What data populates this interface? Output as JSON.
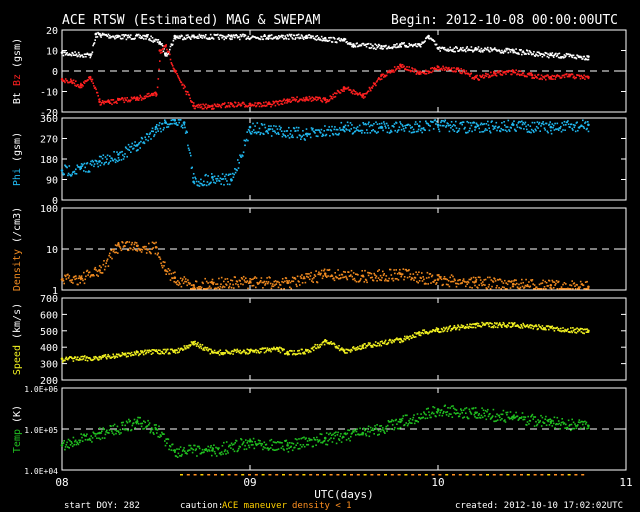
{
  "header": {
    "title": "ACE RTSW (Estimated) MAG & SWEPAM",
    "begin": "Begin: 2012-10-08 00:00:00UTC"
  },
  "footer": {
    "start_doy": "start DOY: 282",
    "caution_label": "caution:",
    "caution_maneuver": "ACE maneuver",
    "caution_density": "density < 1",
    "created": "created: 2012-10-10 17:02:02UTC"
  },
  "colors": {
    "bt": "#ffffff",
    "bz": "#ff2020",
    "phi": "#20b8f0",
    "density": "#f08a20",
    "speed": "#f0f020",
    "temp": "#20c020",
    "maneuver": "#ffd000",
    "density_low": "#ff9020"
  },
  "chart_data": {
    "type": "scatter",
    "xlabel": "UTC(days)",
    "x_ticks": [
      "08",
      "09",
      "10",
      "11"
    ],
    "xlim": [
      8,
      11
    ],
    "panels": [
      {
        "key": "mag",
        "ylabels": [
          {
            "text": "Bt",
            "color": "#ffffff"
          },
          {
            "text": "Bz",
            "color": "#ff2020"
          },
          {
            "text": "(gsm)",
            "color": "#ffffff"
          }
        ],
        "ylim": [
          -20,
          20
        ],
        "yticks": [
          "20",
          "10",
          "0",
          "-10",
          "-20"
        ],
        "ytick_values": [
          20,
          10,
          0,
          -10,
          -20
        ],
        "reference_lines": [
          0
        ],
        "series": [
          {
            "name": "Bt",
            "color": "#ffffff",
            "x": [
              8.0,
              8.15,
              8.18,
              8.2,
              8.3,
              8.45,
              8.52,
              8.55,
              8.6,
              8.7,
              8.9,
              9.1,
              9.3,
              9.4,
              9.5,
              9.55,
              9.7,
              9.8,
              9.9,
              9.95,
              10.0,
              10.2,
              10.4,
              10.6,
              10.8
            ],
            "y": [
              9,
              8,
              18,
              18,
              17,
              17,
              14,
              8,
              17,
              17,
              17,
              17,
              17,
              16,
              15,
              13,
              12,
              13,
              13,
              17,
              11,
              11,
              10,
              8,
              7
            ]
          },
          {
            "name": "Bz",
            "color": "#ff2020",
            "x": [
              8.0,
              8.05,
              8.1,
              8.15,
              8.2,
              8.25,
              8.3,
              8.4,
              8.5,
              8.52,
              8.55,
              8.6,
              8.7,
              8.8,
              8.9,
              9.0,
              9.1,
              9.2,
              9.3,
              9.4,
              9.5,
              9.6,
              9.7,
              9.8,
              9.9,
              10.0,
              10.1,
              10.2,
              10.3,
              10.4,
              10.5,
              10.6,
              10.7,
              10.8
            ],
            "y": [
              -4,
              -5,
              -7,
              -3,
              -15,
              -15,
              -14,
              -13,
              -11,
              10,
              12,
              0,
              -17,
              -17,
              -16,
              -16,
              -16,
              -14,
              -13,
              -14,
              -8,
              -12,
              -2,
              3,
              -1,
              2,
              1,
              -3,
              -1,
              0,
              -2,
              -3,
              -2,
              -3
            ]
          }
        ]
      },
      {
        "key": "phi",
        "ylabels": [
          {
            "text": "Phi",
            "color": "#20b8f0"
          },
          {
            "text": "(gsm)",
            "color": "#ffffff"
          }
        ],
        "ylim": [
          0,
          360
        ],
        "yticks": [
          "360",
          "270",
          "180",
          "90",
          "0"
        ],
        "ytick_values": [
          360,
          270,
          180,
          90,
          0
        ],
        "reference_lines": [],
        "series": [
          {
            "name": "Phi",
            "color": "#20b8f0",
            "x": [
              8.0,
              8.1,
              8.2,
              8.3,
              8.4,
              8.5,
              8.55,
              8.6,
              8.65,
              8.7,
              8.8,
              8.9,
              9.0,
              9.1,
              9.3,
              9.5,
              9.7,
              9.9,
              10.0,
              10.2,
              10.4,
              10.6,
              10.8
            ],
            "y": [
              130,
              140,
              170,
              200,
              240,
              320,
              340,
              350,
              340,
              80,
              100,
              90,
              320,
              310,
              290,
              320,
              320,
              325,
              330,
              320,
              330,
              320,
              330
            ]
          }
        ]
      },
      {
        "key": "density",
        "scale": "log",
        "ylabels": [
          {
            "text": "Density",
            "color": "#f08a20"
          },
          {
            "text": "(/cm3)",
            "color": "#ffffff"
          }
        ],
        "ylim": [
          1,
          100
        ],
        "yticks": [
          "100",
          "10",
          "1"
        ],
        "ytick_values": [
          100,
          10,
          1
        ],
        "reference_lines": [
          10
        ],
        "series": [
          {
            "name": "Density",
            "color": "#f08a20",
            "x": [
              8.0,
              8.1,
              8.2,
              8.3,
              8.4,
              8.5,
              8.55,
              8.6,
              8.7,
              8.8,
              9.0,
              9.2,
              9.4,
              9.6,
              9.8,
              10.0,
              10.2,
              10.4,
              10.6,
              10.8
            ],
            "y": [
              1.8,
              2.0,
              3.0,
              13,
              12,
              11,
              3,
              2,
              1.3,
              1.5,
              1.6,
              1.5,
              2.5,
              2.2,
              2.5,
              1.8,
              1.6,
              1.4,
              1.3,
              1.2
            ]
          }
        ]
      },
      {
        "key": "speed",
        "ylabels": [
          {
            "text": "Speed",
            "color": "#f0f020"
          },
          {
            "text": "(km/s)",
            "color": "#ffffff"
          }
        ],
        "ylim": [
          200,
          700
        ],
        "yticks": [
          "700",
          "600",
          "500",
          "400",
          "300",
          "200"
        ],
        "ytick_values": [
          700,
          600,
          500,
          400,
          300,
          200
        ],
        "reference_lines": [],
        "series": [
          {
            "name": "Speed",
            "color": "#f0f020",
            "x": [
              8.0,
              8.2,
              8.4,
              8.6,
              8.7,
              8.8,
              9.0,
              9.15,
              9.2,
              9.3,
              9.4,
              9.5,
              9.6,
              9.8,
              9.9,
              10.0,
              10.2,
              10.4,
              10.6,
              10.8
            ],
            "y": [
              330,
              340,
              370,
              380,
              430,
              370,
              380,
              390,
              370,
              380,
              440,
              380,
              410,
              450,
              490,
              510,
              540,
              540,
              520,
              500
            ]
          }
        ]
      },
      {
        "key": "temp",
        "scale": "log",
        "ylabels": [
          {
            "text": "Temp",
            "color": "#20c020"
          },
          {
            "text": "(K)",
            "color": "#ffffff"
          }
        ],
        "ylim": [
          10000,
          1000000
        ],
        "yticks": [
          "1.0E+06",
          "1.0E+05",
          "1.0E+04"
        ],
        "ytick_values": [
          1000000,
          100000,
          10000
        ],
        "reference_lines": [
          100000
        ],
        "series": [
          {
            "name": "Temp",
            "color": "#20c020",
            "x": [
              8.0,
              8.2,
              8.4,
              8.5,
              8.6,
              8.8,
              9.0,
              9.2,
              9.4,
              9.6,
              9.8,
              10.0,
              10.2,
              10.4,
              10.6,
              10.8
            ],
            "y": [
              40000,
              80000,
              150000,
              100000,
              30000,
              30000,
              50000,
              40000,
              60000,
              80000,
              150000,
              300000,
              250000,
              200000,
              150000,
              120000
            ]
          }
        ]
      }
    ]
  }
}
